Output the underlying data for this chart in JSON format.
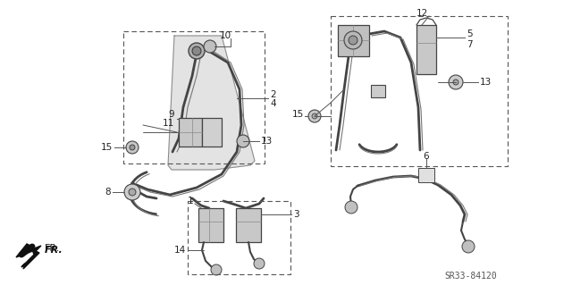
{
  "bg_color": "#ffffff",
  "diagram_code": "SR33-84120",
  "fr_label": "FR.",
  "label_fontsize": 7.5,
  "code_fontsize": 7,
  "dark": "#222222",
  "mid": "#666666",
  "light": "#aaaaaa",
  "lighter": "#cccccc",
  "belt_dark": "#444444",
  "belt_mid": "#777777",
  "belt_lw": 2.0
}
